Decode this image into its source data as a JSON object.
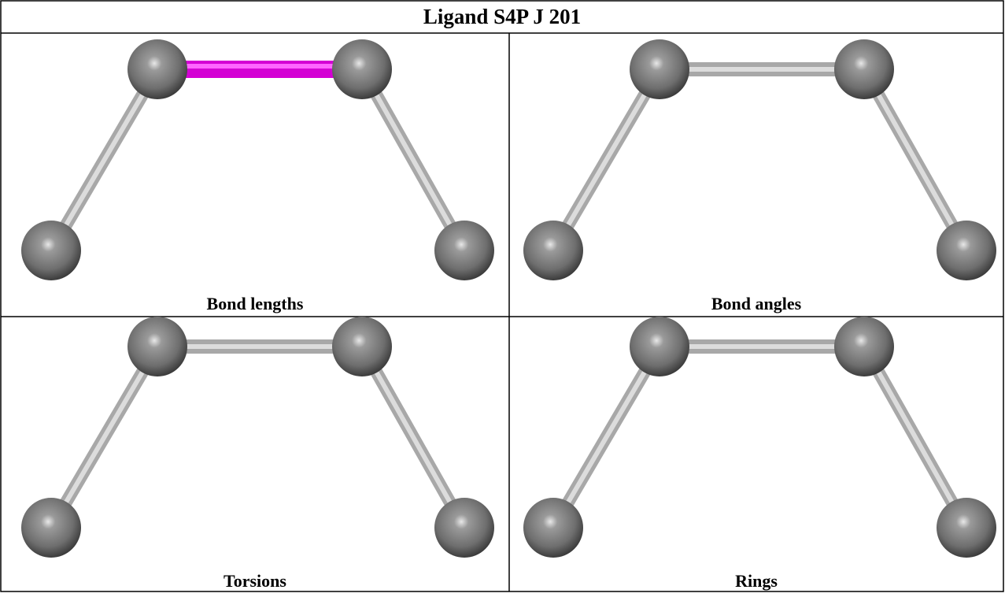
{
  "title": "Ligand S4P J 201",
  "panels": [
    {
      "caption": "Bond lengths"
    },
    {
      "caption": "Bond angles"
    },
    {
      "caption": "Torsions"
    },
    {
      "caption": "Rings"
    }
  ]
}
